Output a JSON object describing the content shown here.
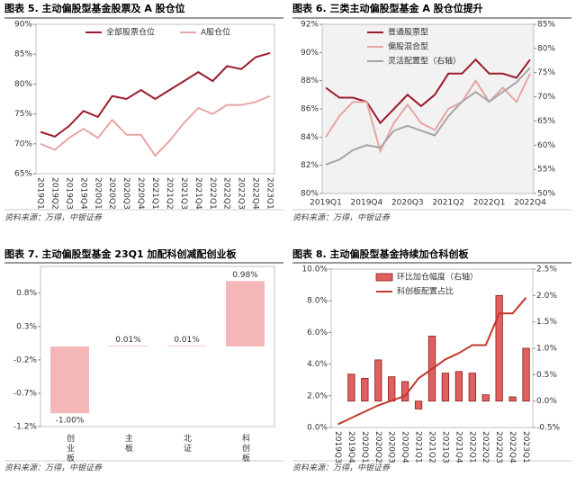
{
  "chart_data": [
    {
      "type": "line",
      "title": "图表 5. 主动偏股型基金股票及 A 股仓位",
      "source": "资料来源：万得，中银证券",
      "categories": [
        "2019Q1",
        "2019Q2",
        "2019Q3",
        "2019Q4",
        "2020Q1",
        "2020Q2",
        "2020Q3",
        "2020Q4",
        "2021Q1",
        "2021Q2",
        "2021Q3",
        "2021Q4",
        "2022Q1",
        "2022Q2",
        "2022Q3",
        "2022Q4",
        "2023Q1"
      ],
      "series": [
        {
          "name": "全部股票仓位",
          "color": "#9b1c2c",
          "values": [
            72,
            71.2,
            73,
            75.5,
            74.5,
            78,
            77.5,
            79,
            77.5,
            79,
            80.5,
            82,
            80.5,
            83,
            82.5,
            84.5,
            85.2
          ]
        },
        {
          "name": "A股仓位",
          "color": "#e8a5a5",
          "values": [
            70,
            69,
            71,
            72.5,
            71,
            74,
            71.5,
            71.5,
            68,
            70.5,
            73.5,
            76,
            75,
            76.5,
            76.5,
            77,
            78
          ]
        }
      ],
      "ylim": [
        65,
        90
      ],
      "yticks": [
        {
          "value": 65,
          "label": "65%"
        },
        {
          "value": 70,
          "label": "70%"
        },
        {
          "value": 75,
          "label": "75%"
        },
        {
          "value": 80,
          "label": "80%"
        },
        {
          "value": 85,
          "label": "85%"
        },
        {
          "value": 90,
          "label": "90%"
        }
      ],
      "legend": "top",
      "grid": false
    },
    {
      "type": "line",
      "title": "图表 6. 三类主动偏股型基金 A 股仓位提升",
      "source": "资料来源：万得，中银证券",
      "categories": [
        "2019Q1",
        null,
        null,
        "2019Q4",
        null,
        null,
        "2020Q3",
        null,
        null,
        "2021Q2",
        null,
        null,
        "2022Q1",
        null,
        null,
        "2022Q4"
      ],
      "series": [
        {
          "name": "普通股票型",
          "color": "#9b1c2c",
          "values": [
            87.5,
            86.8,
            86.8,
            86.5,
            85,
            86,
            87,
            86.2,
            87,
            88.5,
            88.5,
            89.5,
            88.5,
            88.5,
            88.2,
            89.5
          ]
        },
        {
          "name": "偏股混合型",
          "color": "#e8a5a5",
          "values": [
            84,
            85.5,
            86.5,
            86.5,
            83,
            85,
            86.3,
            85,
            84.5,
            86,
            86.5,
            88,
            86.5,
            87.5,
            86.5,
            88.5
          ]
        },
        {
          "name": "灵活配置型（右轴）",
          "color": "#a6a6a6",
          "axis": "y2",
          "values": [
            56,
            57,
            59,
            60,
            59.5,
            63,
            64,
            63,
            62,
            66,
            69,
            71,
            69,
            71,
            73,
            76
          ]
        }
      ],
      "ylim": [
        80,
        92
      ],
      "yticks": [
        {
          "value": 80,
          "label": "80%"
        },
        {
          "value": 82,
          "label": "82%"
        },
        {
          "value": 84,
          "label": "84%"
        },
        {
          "value": 86,
          "label": "86%"
        },
        {
          "value": 88,
          "label": "88%"
        },
        {
          "value": 90,
          "label": "90%"
        },
        {
          "value": 92,
          "label": "92%"
        }
      ],
      "y2lim": [
        50,
        85
      ],
      "y2ticks": [
        {
          "value": 50,
          "label": "50%"
        },
        {
          "value": 55,
          "label": "55%"
        },
        {
          "value": 60,
          "label": "60%"
        },
        {
          "value": 65,
          "label": "65%"
        },
        {
          "value": 70,
          "label": "70%"
        },
        {
          "value": 75,
          "label": "75%"
        },
        {
          "value": 80,
          "label": "80%"
        },
        {
          "value": 85,
          "label": "85%"
        }
      ],
      "legend": "upper left",
      "grid": false
    },
    {
      "type": "bar",
      "title": "图表 7. 主动偏股型基金 23Q1 加配科创减配创业板",
      "source": "资料来源：万得，中银证券",
      "categories": [
        "创业板",
        "主板",
        "北证",
        "科创板"
      ],
      "values": [
        -1.0,
        0.01,
        0.01,
        0.98
      ],
      "value_labels": [
        "-1.00%",
        "0.01%",
        "0.01%",
        "0.98%"
      ],
      "color": "#f4b6b6",
      "ylim": [
        -1.2,
        1.2
      ],
      "yticks": [
        {
          "value": -1.2,
          "label": "-1.2%"
        },
        {
          "value": -0.7,
          "label": "-0.7%"
        },
        {
          "value": -0.2,
          "label": "-0.2%"
        },
        {
          "value": 0.3,
          "label": "0.3%"
        },
        {
          "value": 0.8,
          "label": "0.8%"
        }
      ],
      "grid": false
    },
    {
      "type": "combo",
      "title": "图表 8. 主动偏股型基金持续加仓科创板",
      "source": "资料来源：万得，中银证券",
      "categories": [
        "2019Q3",
        "2019Q4",
        "2020Q1",
        "2020Q2",
        "2020Q3",
        "2020Q4",
        "2021Q1",
        "2021Q2",
        "2021Q3",
        "2021Q4",
        "2022Q1",
        "2022Q2",
        "2022Q3",
        "2022Q4",
        "2023Q1"
      ],
      "series": [
        {
          "name": "环比加仓幅度（右轴）",
          "type": "bar",
          "axis": "y2",
          "color": "#e06060",
          "values": [
            null,
            0.51,
            0.43,
            0.78,
            0.46,
            0.37,
            -0.15,
            1.23,
            0.53,
            0.56,
            0.53,
            0.12,
            2.0,
            0.08,
            1.0
          ]
        },
        {
          "name": "科创板配置占比",
          "type": "line",
          "color": "#c0392b",
          "values": [
            0.2,
            0.6,
            1.0,
            1.4,
            1.7,
            2.0,
            3.1,
            3.7,
            4.3,
            4.7,
            5.2,
            5.2,
            7.2,
            7.2,
            8.2
          ]
        }
      ],
      "ylim": [
        0,
        10
      ],
      "yticks": [
        {
          "value": 0,
          "label": "0.0%"
        },
        {
          "value": 2,
          "label": "2.0%"
        },
        {
          "value": 4,
          "label": "4.0%"
        },
        {
          "value": 6,
          "label": "6.0%"
        },
        {
          "value": 8,
          "label": "8.0%"
        },
        {
          "value": 10,
          "label": "10.0%"
        }
      ],
      "y2lim": [
        -0.5,
        2.5
      ],
      "y2ticks": [
        {
          "value": -0.5,
          "label": "-0.5%"
        },
        {
          "value": 0,
          "label": "0.0%"
        },
        {
          "value": 0.5,
          "label": "0.5%"
        },
        {
          "value": 1,
          "label": "1.0%"
        },
        {
          "value": 1.5,
          "label": "1.5%"
        },
        {
          "value": 2,
          "label": "2.0%"
        },
        {
          "value": 2.5,
          "label": "2.5%"
        }
      ],
      "legend": "upper left",
      "grid": false
    }
  ]
}
